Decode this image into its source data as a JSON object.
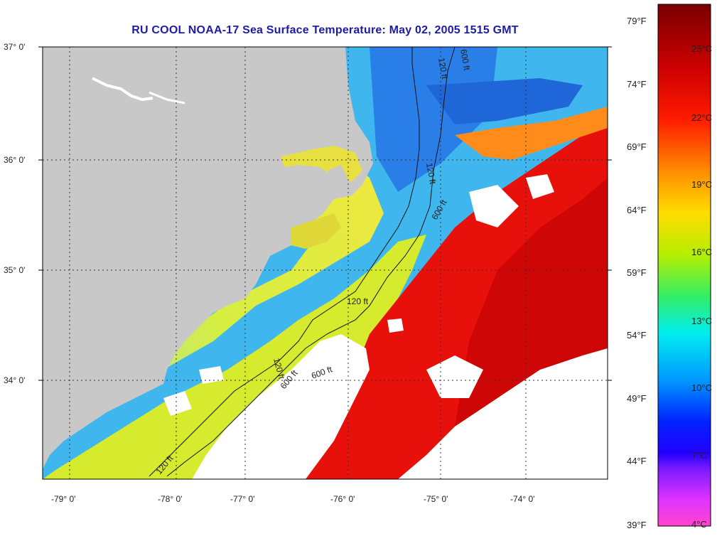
{
  "title": "RU COOL  NOAA-17  Sea Surface Temperature:  May 02, 2005 1515 GMT",
  "map": {
    "lat_labels": [
      "37° 0'",
      "36° 0'",
      "35° 0'",
      "34° 0'"
    ],
    "lon_labels": [
      "-79° 0'",
      "-78° 0'",
      "-77° 0'",
      "-76° 0'",
      "-75° 0'",
      "-74° 0'"
    ],
    "contour_labels": [
      "120 ft",
      "600 ft",
      "120 ft",
      "600 ft",
      "120 ft",
      "600 ft",
      "120 ft",
      "600 ft",
      "120 ft"
    ],
    "colors": {
      "land": "#c8c8c8",
      "cloud": "#ffffff"
    }
  },
  "colorbar": {
    "fahrenheit": [
      "79°F",
      "74°F",
      "69°F",
      "64°F",
      "59°F",
      "54°F",
      "49°F",
      "44°F",
      "39°F"
    ],
    "celsius": [
      "25°C",
      "22°C",
      "19°C",
      "16°C",
      "13°C",
      "10°C",
      "7°C",
      "4°C"
    ]
  }
}
